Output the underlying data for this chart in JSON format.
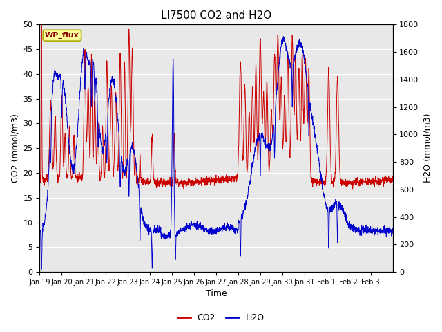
{
  "title": "LI7500 CO2 and H2O",
  "xlabel": "Time",
  "ylabel_left": "CO2 (mmol/m3)",
  "ylabel_right": "H2O (mmol/m3)",
  "ylim_left": [
    0,
    50
  ],
  "ylim_right": [
    0,
    1800
  ],
  "yticks_left": [
    0,
    5,
    10,
    15,
    20,
    25,
    30,
    35,
    40,
    45,
    50
  ],
  "yticks_right": [
    0,
    200,
    400,
    600,
    800,
    1000,
    1200,
    1400,
    1600,
    1800
  ],
  "xtick_labels": [
    "Jan 19",
    "Jan 20",
    "Jan 21",
    "Jan 22",
    "Jan 23",
    "Jan 24",
    "Jan 25",
    "Jan 26",
    "Jan 27",
    "Jan 28",
    "Jan 29",
    "Jan 30",
    "Jan 31",
    "Feb 1",
    "Feb 2",
    "Feb 3"
  ],
  "co2_color": "#CC0000",
  "h2o_color": "#0000CC",
  "background_color": "#E8E8E8",
  "annotation_text": "WP_flux",
  "annotation_bg": "#FFFF99",
  "annotation_border": "#AAAA00",
  "title_fontsize": 11,
  "axis_fontsize": 9,
  "tick_fontsize": 8,
  "legend_fontsize": 9
}
